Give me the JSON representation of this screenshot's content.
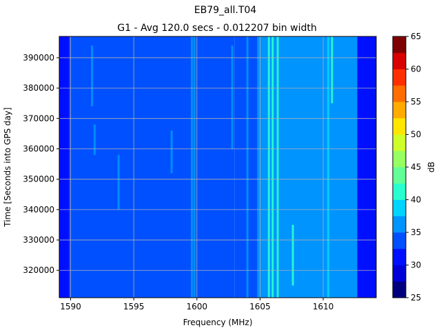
{
  "chart_data": {
    "type": "heatmap",
    "title": "EB79_all.T04",
    "subtitle": "G1 - Avg 120.0 secs - 0.012207 bin width",
    "xlabel": "Frequency (MHz)",
    "ylabel": "Time [Seconds into GPS day]",
    "xlim": [
      1589.1,
      1614.2
    ],
    "ylim": [
      311000,
      397000
    ],
    "xticks": [
      1590,
      1595,
      1600,
      1605,
      1610
    ],
    "yticks": [
      320000,
      330000,
      340000,
      350000,
      360000,
      370000,
      380000,
      390000
    ],
    "grid": true,
    "colorbar": {
      "label": "dB",
      "levels": [
        25,
        27.5,
        30,
        32.5,
        35,
        37.5,
        40,
        42.5,
        45,
        47.5,
        50,
        52.5,
        55,
        57.5,
        60,
        62.5,
        65
      ],
      "ticks": [
        25,
        30,
        35,
        40,
        45,
        50,
        55,
        60,
        65
      ],
      "colors": [
        "#00007f",
        "#0000d8",
        "#0010ff",
        "#0050ff",
        "#0094ff",
        "#00d4ff",
        "#29ffce",
        "#61ff96",
        "#96ff61",
        "#ceff29",
        "#ffe600",
        "#ffab00",
        "#ff6d00",
        "#ff3000",
        "#d80000",
        "#7f0000"
      ]
    },
    "bands": [
      {
        "f0": 1589.1,
        "f1": 1589.9,
        "level": 30
      },
      {
        "f0": 1589.9,
        "f1": 1603.0,
        "level": 32.5
      },
      {
        "f0": 1603.0,
        "f1": 1604.8,
        "level": 33.5
      },
      {
        "f0": 1604.8,
        "f1": 1612.7,
        "level": 35
      },
      {
        "f0": 1612.7,
        "f1": 1614.2,
        "level": 30
      }
    ],
    "streaks": [
      {
        "f": 1591.7,
        "t0": 374000,
        "t1": 394000,
        "level": 36
      },
      {
        "f": 1591.9,
        "t0": 358000,
        "t1": 368000,
        "level": 36
      },
      {
        "f": 1593.8,
        "t0": 340000,
        "t1": 358000,
        "level": 36
      },
      {
        "f": 1598.0,
        "t0": 352000,
        "t1": 366000,
        "level": 36
      },
      {
        "f": 1599.6,
        "t0": 311000,
        "t1": 397000,
        "level": 36
      },
      {
        "f": 1599.8,
        "t0": 311000,
        "t1": 397000,
        "level": 36
      },
      {
        "f": 1602.8,
        "t0": 360000,
        "t1": 394000,
        "level": 36
      },
      {
        "f": 1604.0,
        "t0": 311000,
        "t1": 397000,
        "level": 36
      },
      {
        "f": 1605.7,
        "t0": 311000,
        "t1": 397000,
        "level": 40
      },
      {
        "f": 1606.0,
        "t0": 311000,
        "t1": 397000,
        "level": 40
      },
      {
        "f": 1606.4,
        "t0": 311000,
        "t1": 397000,
        "level": 40
      },
      {
        "f": 1607.6,
        "t0": 315000,
        "t1": 335000,
        "level": 40
      },
      {
        "f": 1610.4,
        "t0": 311000,
        "t1": 397000,
        "level": 38
      },
      {
        "f": 1610.7,
        "t0": 375000,
        "t1": 397000,
        "level": 40
      }
    ]
  }
}
